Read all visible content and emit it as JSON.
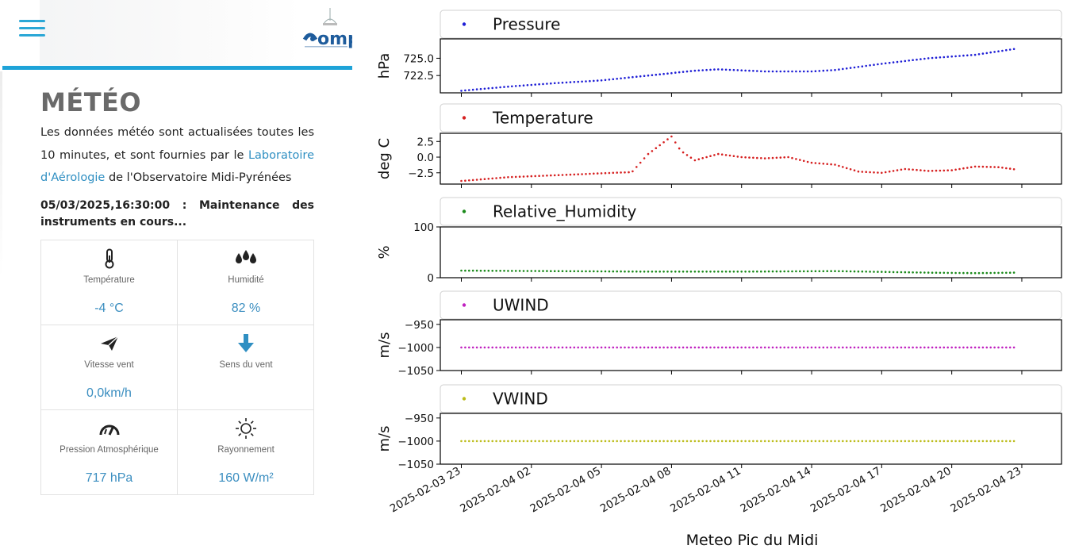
{
  "header": {
    "menu_icon": "hamburger-menu-icon",
    "logo_text": "omp"
  },
  "page": {
    "title": "MÉTÉO",
    "intro_before": "Les données météo sont actualisées toutes les 10 minutes, et sont fournies par le ",
    "intro_link": "Laboratoire d'Aérologie",
    "intro_after": " de l'Observatoire Midi-Pyrénées",
    "notice": "05/03/2025,16:30:00 : Maintenance des instruments en cours..."
  },
  "measures": [
    {
      "icon": "thermometer-icon",
      "label": "Température",
      "value": "-4 °C"
    },
    {
      "icon": "humidity-drops-icon",
      "label": "Humidité",
      "value": "82 %"
    },
    {
      "icon": "paper-plane-icon",
      "label": "Vitesse vent",
      "value": "0,0km/h"
    },
    {
      "icon": "wind-direction-arrow-icon",
      "label": "Sens du vent",
      "value": ""
    },
    {
      "icon": "gauge-icon",
      "label": "Pression Atmosphérique",
      "value": "717 hPa"
    },
    {
      "icon": "sun-icon",
      "label": "Rayonnement",
      "value": "160 W/m²"
    }
  ],
  "colors": {
    "accent": "#1ea3d8",
    "value": "#3b8ec0",
    "pressure": "#1f1fd6",
    "temperature": "#d62020",
    "humidity": "#1a8a1a",
    "uwind": "#c020c0",
    "vwind": "#bcbc1a"
  },
  "chart_data": {
    "type": "scatter",
    "xlabel": "Meteo Pic du Midi",
    "x_ticks": [
      "2025-02-03 23",
      "2025-02-04 02",
      "2025-02-04 05",
      "2025-02-04 08",
      "2025-02-04 11",
      "2025-02-04 14",
      "2025-02-04 17",
      "2025-02-04 20",
      "2025-02-04 23"
    ],
    "x_range_hours": [
      -0.9,
      25.7
    ],
    "x_start": "2025-02-04 00:00",
    "x_end": "2025-02-04 23:50",
    "panels": [
      {
        "name": "Pressure",
        "ylabel": "hPa",
        "color": "#1f1fd6",
        "ylim": [
          720.0,
          727.8
        ],
        "yticks": [
          722.5,
          725.0
        ],
        "ytick_labels": [
          "722.5",
          "725.0"
        ],
        "points": [
          [
            0,
            720.3
          ],
          [
            2,
            720.9
          ],
          [
            4,
            721.4
          ],
          [
            6,
            721.8
          ],
          [
            8,
            722.5
          ],
          [
            10,
            723.2
          ],
          [
            11,
            723.4
          ],
          [
            13,
            723.1
          ],
          [
            15,
            723.1
          ],
          [
            16,
            723.3
          ],
          [
            18,
            724.2
          ],
          [
            20,
            725.0
          ],
          [
            22,
            725.5
          ],
          [
            23.8,
            726.4
          ]
        ]
      },
      {
        "name": "Temperature",
        "ylabel": "deg C",
        "color": "#d62020",
        "ylim": [
          -4.3,
          3.8
        ],
        "yticks": [
          -2.5,
          0.0,
          2.5
        ],
        "ytick_labels": [
          "−2.5",
          "0.0",
          "2.5"
        ],
        "points": [
          [
            0,
            -3.8
          ],
          [
            2,
            -3.2
          ],
          [
            4,
            -2.9
          ],
          [
            6.5,
            -2.5
          ],
          [
            7.3,
            -2.4
          ],
          [
            8,
            0.5
          ],
          [
            9.0,
            3.3
          ],
          [
            9.4,
            1.0
          ],
          [
            10,
            -0.5
          ],
          [
            11,
            0.5
          ],
          [
            12,
            0.0
          ],
          [
            13,
            -0.2
          ],
          [
            14,
            0.0
          ],
          [
            15,
            -0.9
          ],
          [
            16,
            -1.2
          ],
          [
            17,
            -2.3
          ],
          [
            18,
            -2.5
          ],
          [
            19,
            -1.9
          ],
          [
            20,
            -2.2
          ],
          [
            21,
            -2.1
          ],
          [
            22,
            -1.5
          ],
          [
            23,
            -1.6
          ],
          [
            23.8,
            -2.0
          ]
        ]
      },
      {
        "name": "Relative_Humidity",
        "ylabel": "%",
        "color": "#1a8a1a",
        "ylim": [
          0,
          100
        ],
        "yticks": [
          0,
          100
        ],
        "ytick_labels": [
          "0",
          "100"
        ],
        "points": [
          [
            0,
            14
          ],
          [
            4,
            13
          ],
          [
            8,
            12
          ],
          [
            12,
            12
          ],
          [
            16,
            13
          ],
          [
            20,
            10
          ],
          [
            22,
            9
          ],
          [
            23.8,
            10
          ]
        ]
      },
      {
        "name": "UWIND",
        "ylabel": "m/s",
        "color": "#c020c0",
        "ylim": [
          -1050,
          -940
        ],
        "yticks": [
          -1050,
          -1000,
          -950
        ],
        "ytick_labels": [
          "−1050",
          "−1000",
          "−950"
        ],
        "points": [
          [
            0,
            -1000
          ],
          [
            23.8,
            -1000
          ]
        ]
      },
      {
        "name": "VWIND",
        "ylabel": "m/s",
        "color": "#bcbc1a",
        "ylim": [
          -1050,
          -940
        ],
        "yticks": [
          -1050,
          -1000,
          -950
        ],
        "ytick_labels": [
          "−1050",
          "−1000",
          "−950"
        ],
        "points": [
          [
            0,
            -1000
          ],
          [
            23.8,
            -1000
          ]
        ]
      }
    ]
  }
}
